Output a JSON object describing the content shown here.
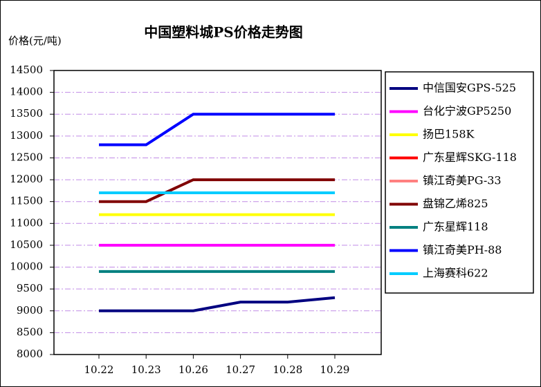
{
  "chart_data": {
    "type": "line",
    "title": "中国塑料城PS价格走势图",
    "y_label": "价格(元/吨)",
    "categories": [
      "10.22",
      "10.23",
      "10.26",
      "10.27",
      "10.28",
      "10.29"
    ],
    "series": [
      {
        "name": "中信国安GPS-525",
        "color": "#000080",
        "values": [
          9000,
          9000,
          9000,
          9200,
          9200,
          9300
        ]
      },
      {
        "name": "台化宁波GP5250",
        "color": "#ff00ff",
        "values": [
          10500,
          10500,
          10500,
          10500,
          10500,
          10500
        ]
      },
      {
        "name": "扬巴158K",
        "color": "#ffff00",
        "values": [
          11200,
          11200,
          11200,
          11200,
          11200,
          11200
        ]
      },
      {
        "name": "广东星辉SKG-118",
        "color": "#ff0000",
        "values": [
          11700,
          11700,
          11700,
          11700,
          11700,
          11700
        ]
      },
      {
        "name": "镇江奇美PG-33",
        "color": "#ff8080",
        "values": [
          11700,
          11700,
          11700,
          11700,
          11700,
          11700
        ]
      },
      {
        "name": "盘锦乙烯825",
        "color": "#800000",
        "values": [
          11500,
          11500,
          12000,
          12000,
          12000,
          12000
        ]
      },
      {
        "name": "广东星辉118",
        "color": "#008080",
        "values": [
          9900,
          9900,
          9900,
          9900,
          9900,
          9900
        ]
      },
      {
        "name": "镇江奇美PH-88",
        "color": "#0000ff",
        "values": [
          12800,
          12800,
          13500,
          13500,
          13500,
          13500
        ]
      },
      {
        "name": "上海赛科622",
        "color": "#00ccff",
        "values": [
          11700,
          11700,
          11700,
          11700,
          11700,
          11700
        ]
      }
    ],
    "ylim": [
      8000,
      14500
    ],
    "yticks": [
      8000,
      8500,
      9000,
      9500,
      10000,
      10500,
      11000,
      11500,
      12000,
      12500,
      13000,
      13500,
      14000,
      14500
    ],
    "grid": true,
    "legend": "right"
  }
}
